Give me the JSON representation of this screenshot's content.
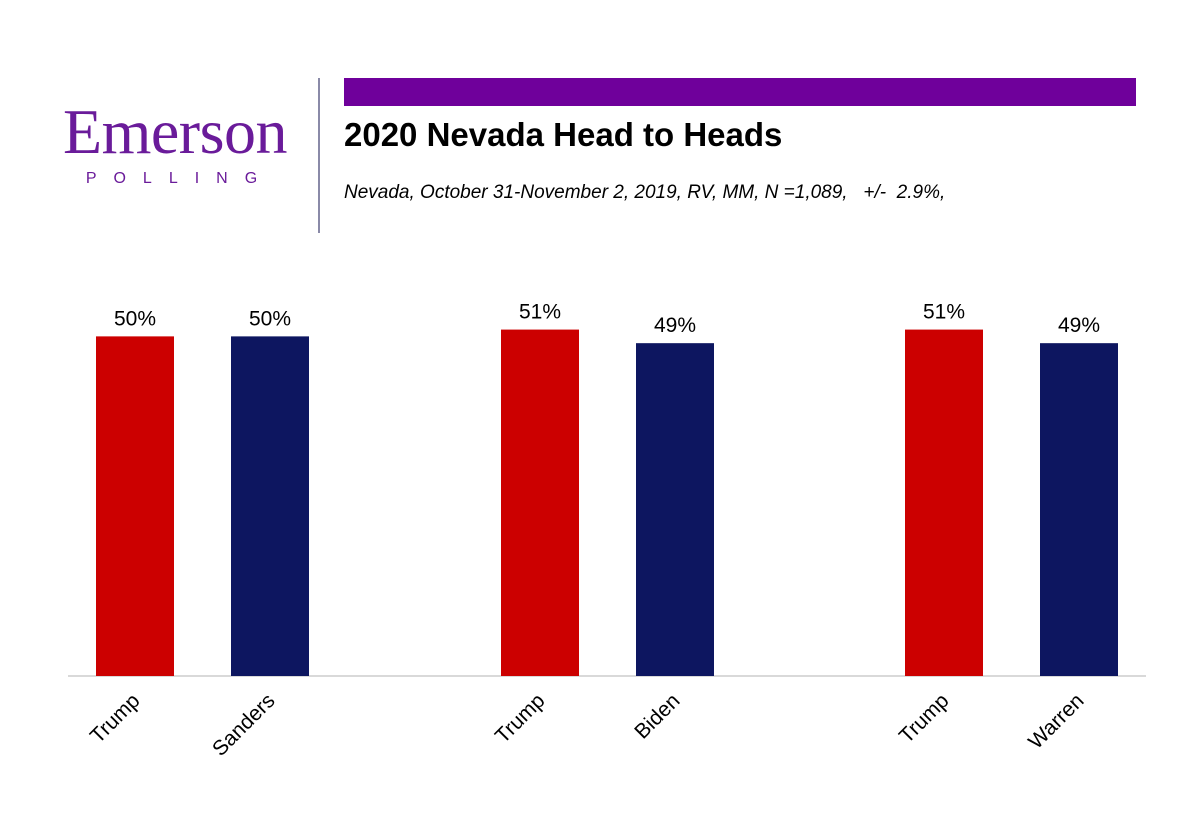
{
  "logo": {
    "name": "Emerson",
    "sub": "POLLING"
  },
  "title": "2020 Nevada Head to Heads",
  "subtitle": "Nevada, October 31-November 2, 2019, RV, MM, N =1,089,   +/-  2.9%,",
  "colors": {
    "accent": "#6f009b",
    "republican": "#cc0000",
    "democrat": "#0d1660",
    "axis": "#d9d9d9"
  },
  "chart_data": {
    "type": "bar",
    "title": "2020 Nevada Head to Heads",
    "xlabel": "",
    "ylabel": "",
    "ylim": [
      0,
      53
    ],
    "grid": false,
    "legend": "none",
    "categories": [
      "Trump",
      "Sanders",
      "Trump",
      "Biden",
      "Trump",
      "Warren"
    ],
    "values": [
      50,
      50,
      51,
      49,
      51,
      49
    ],
    "value_labels": [
      "50%",
      "50%",
      "51%",
      "49%",
      "51%",
      "49%"
    ],
    "bar_colors": [
      "#cc0000",
      "#0d1660",
      "#cc0000",
      "#0d1660",
      "#cc0000",
      "#0d1660"
    ]
  }
}
